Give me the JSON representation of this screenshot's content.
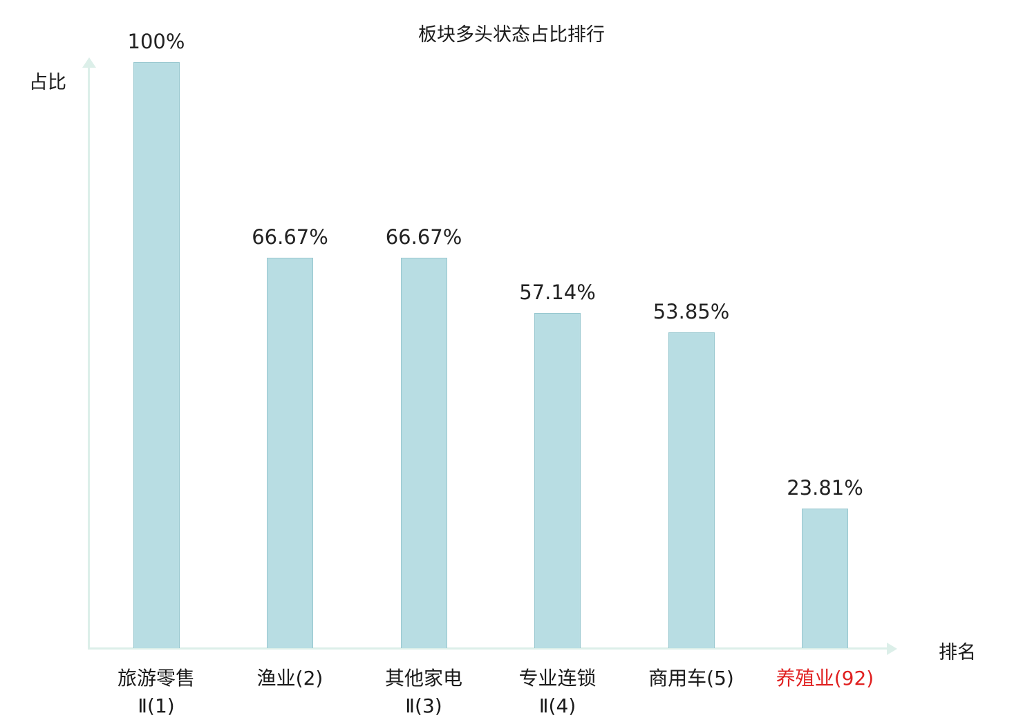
{
  "chart_data": {
    "type": "bar",
    "title": "板块多头状态占比排行",
    "xlabel": "排名",
    "ylabel": "占比",
    "ylim": [
      0,
      100
    ],
    "grid": false,
    "legend": "none",
    "bar_color": "#b8dde3",
    "bar_border_color": "#97c7cf",
    "axis_color": "#dcefe9",
    "highlight_color": "#e02020",
    "categories": [
      "旅游零售Ⅱ(1)",
      "渔业(2)",
      "其他家电Ⅱ(3)",
      "专业连锁Ⅱ(4)",
      "商用车(5)",
      "养殖业(92)"
    ],
    "category_lines": [
      [
        "旅游零售",
        "Ⅱ(1)"
      ],
      [
        "渔业(2)"
      ],
      [
        "其他家电",
        "Ⅱ(3)"
      ],
      [
        "专业连锁",
        "Ⅱ(4)"
      ],
      [
        "商用车(5)"
      ],
      [
        "养殖业(92)"
      ]
    ],
    "values": [
      100,
      66.67,
      66.67,
      57.14,
      53.85,
      23.81
    ],
    "value_labels": [
      "100%",
      "66.67%",
      "66.67%",
      "57.14%",
      "53.85%",
      "23.81%"
    ],
    "highlight_index": 5
  }
}
